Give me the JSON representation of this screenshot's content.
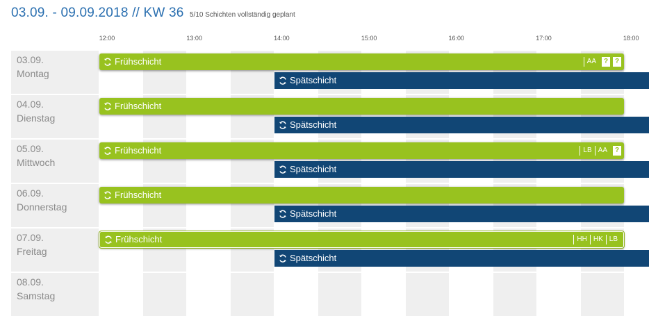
{
  "header": {
    "title": "03.09. - 09.09.2018 // KW 36",
    "subtitle": "5/10 Schichten vollständig geplant"
  },
  "time_axis": [
    "12:00",
    "13:00",
    "14:00",
    "15:00",
    "16:00",
    "17:00",
    "18:00"
  ],
  "days": [
    {
      "date": "03.09.",
      "weekday": "Montag",
      "early": {
        "label": "Frühschicht",
        "badges": [
          "AA"
        ],
        "open_slots": [
          "?",
          "?"
        ]
      },
      "late": {
        "label": "Spätschicht"
      }
    },
    {
      "date": "04.09.",
      "weekday": "Dienstag",
      "early": {
        "label": "Frühschicht",
        "badges": [],
        "open_slots": []
      },
      "late": {
        "label": "Spätschicht"
      }
    },
    {
      "date": "05.09.",
      "weekday": "Mittwoch",
      "early": {
        "label": "Frühschicht",
        "badges": [
          "LB",
          "AA"
        ],
        "open_slots": [
          "?"
        ]
      },
      "late": {
        "label": "Spätschicht"
      }
    },
    {
      "date": "06.09.",
      "weekday": "Donnerstag",
      "early": {
        "label": "Frühschicht",
        "badges": [],
        "open_slots": []
      },
      "late": {
        "label": "Spätschicht"
      }
    },
    {
      "date": "07.09.",
      "weekday": "Freitag",
      "early": {
        "label": "Frühschicht",
        "badges": [
          "HH",
          "HK",
          "LB"
        ],
        "open_slots": [],
        "selected": true
      },
      "late": {
        "label": "Spätschicht"
      }
    },
    {
      "date": "08.09.",
      "weekday": "Samstag"
    }
  ],
  "colors": {
    "early_shift": "#98c21f",
    "late_shift": "#114675",
    "title": "#2a6fb0",
    "stripe": "#efefef"
  },
  "icons": {
    "shift": "refresh-icon",
    "open_slot": "question-mark"
  }
}
